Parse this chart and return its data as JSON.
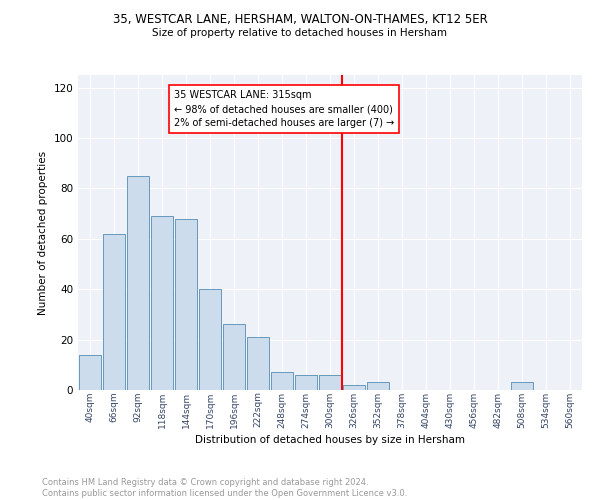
{
  "title_line1": "35, WESTCAR LANE, HERSHAM, WALTON-ON-THAMES, KT12 5ER",
  "title_line2": "Size of property relative to detached houses in Hersham",
  "xlabel": "Distribution of detached houses by size in Hersham",
  "ylabel": "Number of detached properties",
  "bar_labels": [
    "40sqm",
    "66sqm",
    "92sqm",
    "118sqm",
    "144sqm",
    "170sqm",
    "196sqm",
    "222sqm",
    "248sqm",
    "274sqm",
    "300sqm",
    "326sqm",
    "352sqm",
    "378sqm",
    "404sqm",
    "430sqm",
    "456sqm",
    "482sqm",
    "508sqm",
    "534sqm",
    "560sqm"
  ],
  "bar_values": [
    14,
    62,
    85,
    69,
    68,
    40,
    26,
    21,
    7,
    6,
    6,
    2,
    3,
    0,
    0,
    0,
    0,
    0,
    3,
    0,
    0
  ],
  "bar_color": "#ccdcec",
  "bar_edge_color": "#6699bb",
  "bg_color": "#eef2f8",
  "grid_color": "#ffffff",
  "vline_x": 10.5,
  "vline_color": "red",
  "annotation_text": "35 WESTCAR LANE: 315sqm\n← 98% of detached houses are smaller (400)\n2% of semi-detached houses are larger (7) →",
  "annotation_box_color": "white",
  "annotation_box_edge": "red",
  "ylim": [
    0,
    125
  ],
  "yticks": [
    0,
    20,
    40,
    60,
    80,
    100,
    120
  ],
  "footnote": "Contains HM Land Registry data © Crown copyright and database right 2024.\nContains public sector information licensed under the Open Government Licence v3.0.",
  "footnote_color": "#999999"
}
